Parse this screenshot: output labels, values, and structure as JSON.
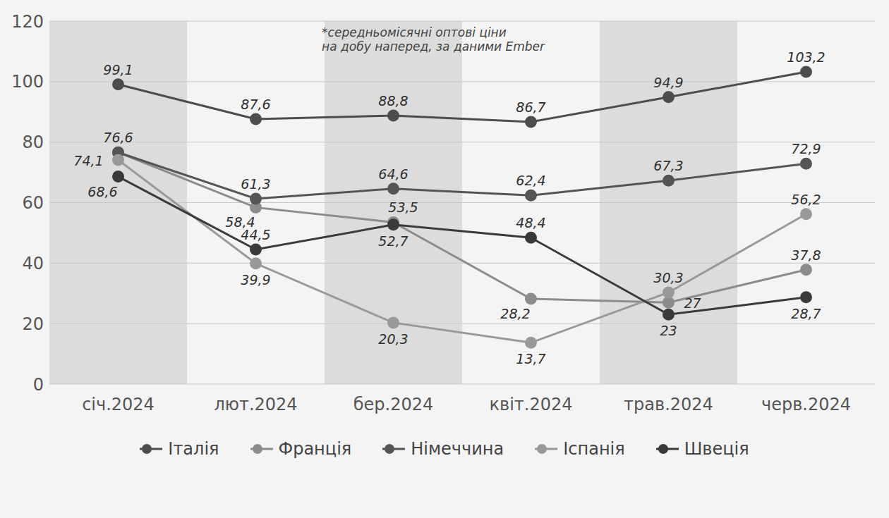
{
  "chart_data": {
    "type": "line",
    "annotation": [
      "*середньомісячні оптові ціни",
      "на добу наперед, за даними Ember"
    ],
    "categories": [
      "січ.2024",
      "лют.2024",
      "бер.2024",
      "квіт.2024",
      "трав.2024",
      "черв.2024"
    ],
    "series": [
      {
        "name": "Італія",
        "color": "#4d4d4d",
        "marker": "circle",
        "values": [
          99.1,
          87.6,
          88.8,
          86.7,
          94.9,
          103.2
        ],
        "value_labels": [
          "99,1",
          "87,6",
          "88,8",
          "86,7",
          "94,9",
          "103,2"
        ]
      },
      {
        "name": "Франція",
        "color": "#8c8c8c",
        "marker": "circle",
        "values": [
          76.6,
          58.4,
          53.5,
          28.2,
          27,
          37.8
        ],
        "value_labels": [
          "76,6",
          "58,4",
          "53,5",
          "28,2",
          "27",
          "37,8"
        ]
      },
      {
        "name": "Німеччина",
        "color": "#555555",
        "marker": "circle",
        "values": [
          76.6,
          61.3,
          64.6,
          62.4,
          67.3,
          72.9
        ],
        "value_labels": [
          "76,6",
          "61,3",
          "64,6",
          "62,4",
          "67,3",
          "72,9"
        ]
      },
      {
        "name": "Іспанія",
        "color": "#999999",
        "marker": "circle",
        "values": [
          74.1,
          39.9,
          20.3,
          13.7,
          30.3,
          56.2
        ],
        "value_labels": [
          "74,1",
          "39,9",
          "20,3",
          "13,7",
          "30,3",
          "56,2"
        ]
      },
      {
        "name": "Швеція",
        "color": "#3a3a3a",
        "marker": "circle",
        "values": [
          68.6,
          44.5,
          52.7,
          48.4,
          23,
          28.7
        ],
        "value_labels": [
          "68,6",
          "44,5",
          "52,7",
          "48,4",
          "23",
          "28,7"
        ]
      }
    ],
    "ylim": [
      0,
      120
    ],
    "yticks": [
      0,
      20,
      40,
      60,
      80,
      100,
      120
    ],
    "grid": true,
    "data_labels": true,
    "legend": "bottom"
  }
}
